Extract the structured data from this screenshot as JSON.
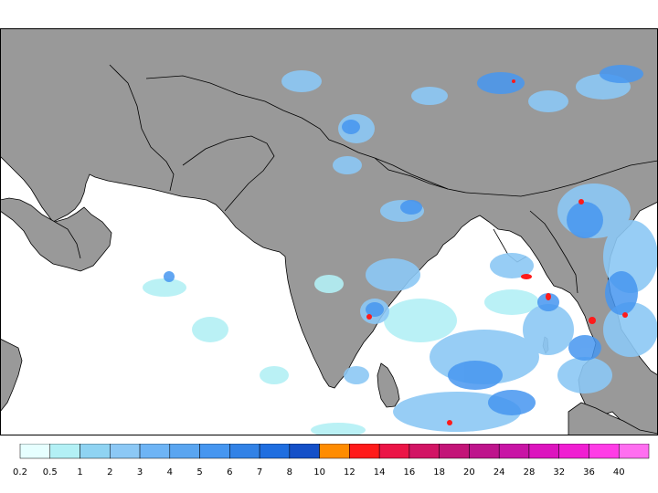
{
  "colors": {
    "land": "#999999",
    "ocean": "#ffffff",
    "coast": "#000000",
    "border": "#000000"
  },
  "legend": {
    "labels": [
      "0.2",
      "0.5",
      "1",
      "2",
      "3",
      "4",
      "5",
      "6",
      "7",
      "8",
      "10",
      "12",
      "14",
      "16",
      "18",
      "20",
      "24",
      "28",
      "32",
      "36",
      "40"
    ],
    "colors": [
      "#e6ffff",
      "#b3f0f5",
      "#8fd3f2",
      "#8cc8f5",
      "#6eb4f5",
      "#5aa5f0",
      "#4696f0",
      "#3282e6",
      "#1f6ee0",
      "#1450c8",
      "#ff8c00",
      "#ff1a1a",
      "#eb1446",
      "#d21464",
      "#c31478",
      "#be148c",
      "#c814a5",
      "#dc14be",
      "#f01ed2",
      "#ff3ce6",
      "#ff6ef0"
    ]
  }
}
